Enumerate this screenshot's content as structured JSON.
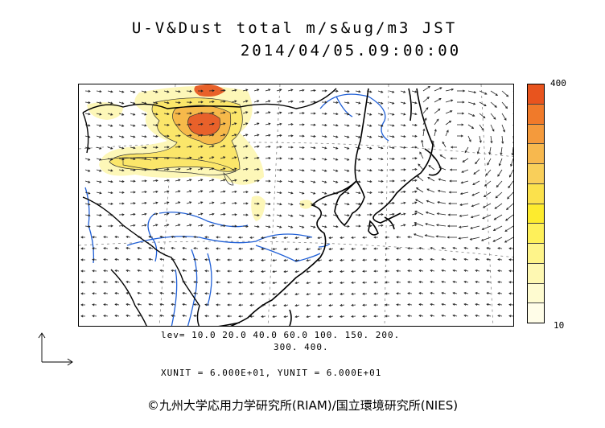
{
  "title": {
    "line1": "U-V&Dust total m/s&ug/m3 JST",
    "line2": "2014/04/05.09:00:00"
  },
  "colorbar": {
    "max_label": "400",
    "min_label": "10",
    "colors": [
      "#e8541e",
      "#f07a2a",
      "#f49a3c",
      "#f7b84e",
      "#f9cf5a",
      "#fbe14c",
      "#fdeb2e",
      "#fef05a",
      "#fef48a",
      "#fef8b2",
      "#fefbd0",
      "#fffde8"
    ]
  },
  "levels": {
    "line1": "lev= 10.0 20.0 40.0 60.0 100. 150. 200.",
    "line2": "300. 400."
  },
  "units": "XUNIT = 6.000E+01, YUNIT = 6.000E+01",
  "copyright": "©九州大学応用力学研究所(RIAM)/国立環境研究所(NIES)",
  "map": {
    "coast_color": "#000000",
    "river_color": "#1f5fd6",
    "dust_colors": {
      "light": "#fdf7b8",
      "medium": "#fbe66a",
      "strong": "#f6b94a",
      "peak": "#e8612a"
    }
  }
}
